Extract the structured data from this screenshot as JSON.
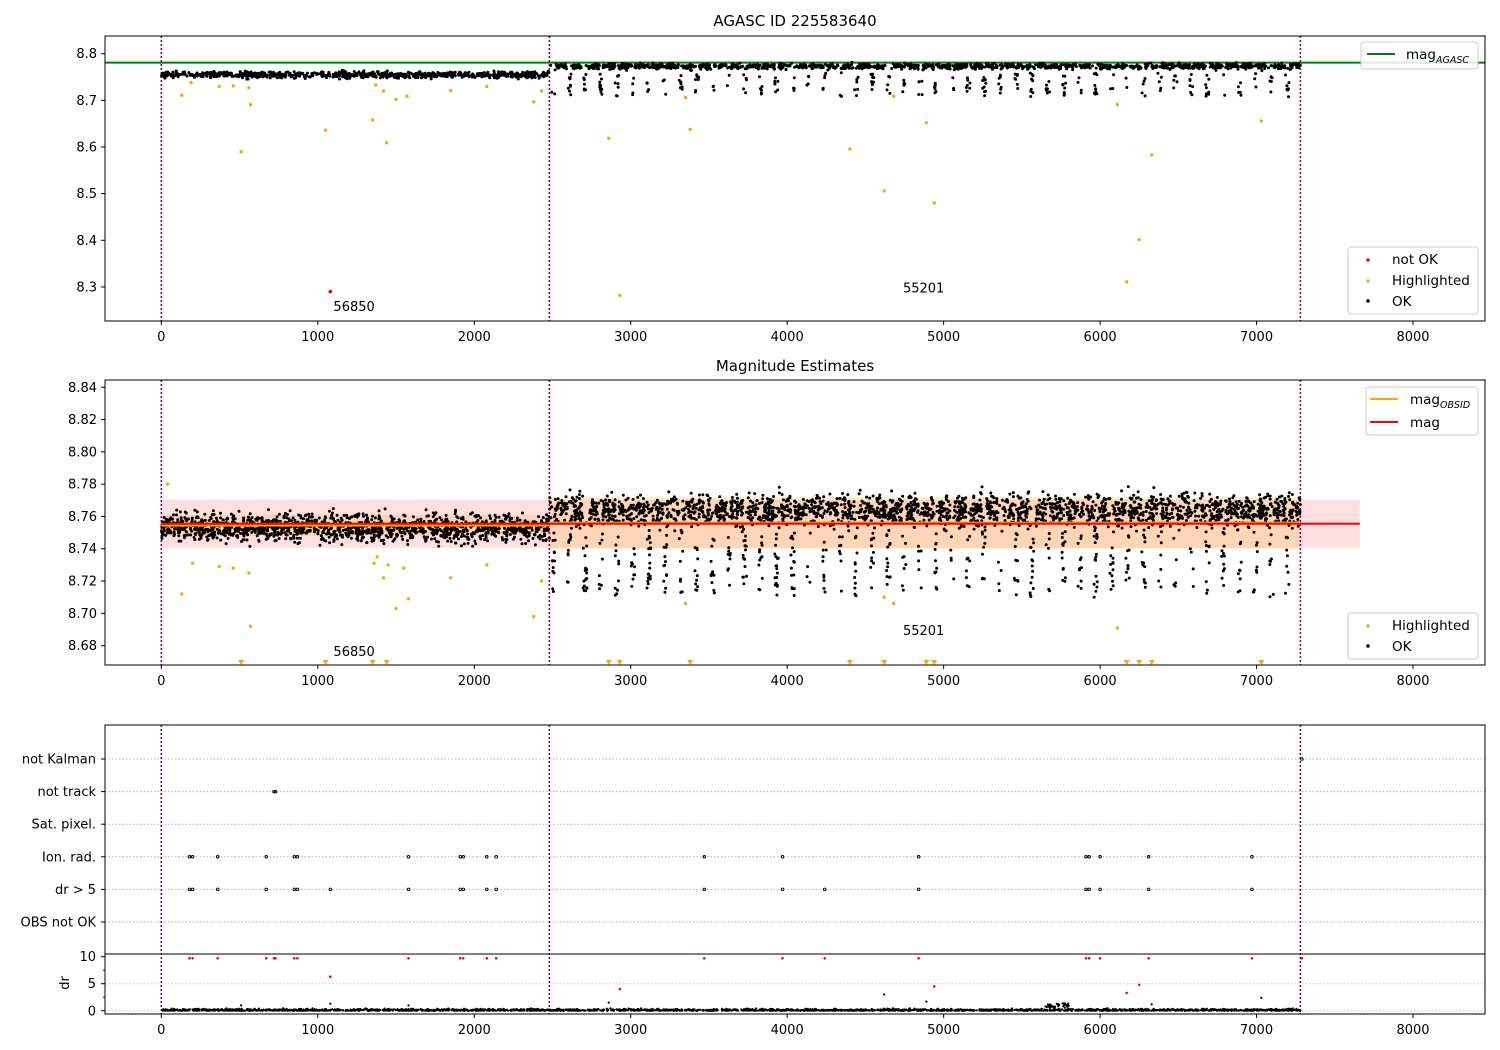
{
  "chart_data": [
    {
      "type": "scatter",
      "title": "AGASC ID 225583640",
      "xlim": [
        -360,
        8460
      ],
      "ylim": [
        8.227,
        8.838
      ],
      "xticks": [
        0,
        1000,
        2000,
        3000,
        4000,
        5000,
        6000,
        7000,
        8000
      ],
      "yticks": [
        8.3,
        8.4,
        8.5,
        8.6,
        8.7,
        8.8
      ],
      "ytick_labels": [
        "8.3",
        "8.4",
        "8.5",
        "8.6",
        "8.7",
        "8.8"
      ],
      "obs_boundaries": [
        0,
        2480,
        7280
      ],
      "hline": {
        "name": "mag",
        "sub": "AGASC",
        "value": 8.781,
        "color": "#008000"
      },
      "legend_line_position": "upper right",
      "legend_points_position": "lower right",
      "legend_points": [
        {
          "label": "not OK",
          "color": "#ff0000"
        },
        {
          "label": "Highlighted",
          "color": "#ffa500"
        },
        {
          "label": "OK",
          "color": "#000000"
        }
      ],
      "annotations": [
        {
          "text": "56850",
          "x": 1100,
          "y": 8.248
        },
        {
          "text": "55201",
          "x": 4740,
          "y": 8.288
        }
      ],
      "ok_segments": [
        {
          "x0": 0,
          "x1": 2480,
          "center": 8.755,
          "spread": 0.007,
          "dips": false
        },
        {
          "x0": 2480,
          "x1": 7280,
          "center": 8.773,
          "spread": 0.006,
          "dips": true,
          "dip_min": 8.71
        }
      ],
      "not_ok_points": [
        [
          1080,
          8.29
        ]
      ],
      "highlighted_points": [
        [
          130,
          8.711
        ],
        [
          190,
          8.738
        ],
        [
          370,
          8.73
        ],
        [
          460,
          8.731
        ],
        [
          510,
          8.59
        ],
        [
          560,
          8.727
        ],
        [
          570,
          8.691
        ],
        [
          1050,
          8.636
        ],
        [
          1350,
          8.658
        ],
        [
          1370,
          8.733
        ],
        [
          1420,
          8.72
        ],
        [
          1440,
          8.609
        ],
        [
          1500,
          8.702
        ],
        [
          1570,
          8.709
        ],
        [
          1850,
          8.721
        ],
        [
          2080,
          8.73
        ],
        [
          2380,
          8.697
        ],
        [
          2430,
          8.72
        ],
        [
          2860,
          8.619
        ],
        [
          2930,
          8.282
        ],
        [
          3350,
          8.706
        ],
        [
          3380,
          8.638
        ],
        [
          4400,
          8.596
        ],
        [
          4620,
          8.506
        ],
        [
          4680,
          8.709
        ],
        [
          4890,
          8.652
        ],
        [
          4940,
          8.48
        ],
        [
          6110,
          8.691
        ],
        [
          6170,
          8.311
        ],
        [
          6250,
          8.401
        ],
        [
          6330,
          8.583
        ],
        [
          7030,
          8.656
        ]
      ]
    },
    {
      "type": "scatter",
      "title": "Magnitude Estimates",
      "xlim": [
        -360,
        8460
      ],
      "ylim": [
        8.668,
        8.8445
      ],
      "xticks": [
        0,
        1000,
        2000,
        3000,
        4000,
        5000,
        6000,
        7000,
        8000
      ],
      "yticks": [
        8.68,
        8.7,
        8.72,
        8.74,
        8.76,
        8.78,
        8.8,
        8.82,
        8.84
      ],
      "ytick_labels": [
        "8.68",
        "8.70",
        "8.72",
        "8.74",
        "8.76",
        "8.78",
        "8.80",
        "8.82",
        "8.84"
      ],
      "obs_boundaries": [
        0,
        2480,
        7280
      ],
      "mag": {
        "name": "mag",
        "value": 8.7555,
        "band": [
          8.7405,
          8.7705
        ],
        "x_range": [
          0,
          7660
        ],
        "color": "#ff0000"
      },
      "mag_obsid": {
        "name": "mag",
        "sub": "OBSID",
        "color": "#ffa500",
        "segments": [
          {
            "x0": 0,
            "x1": 2480,
            "value": 8.7545,
            "band": [
              8.748,
              8.761
            ]
          },
          {
            "x0": 2480,
            "x1": 7280,
            "value": 8.756,
            "band": [
              8.74,
              8.772
            ]
          }
        ]
      },
      "legend_line_position": "upper right",
      "legend_points_position": "lower right",
      "legend_points": [
        {
          "label": "Highlighted",
          "color": "#ffa500"
        },
        {
          "label": "OK",
          "color": "#000000"
        }
      ],
      "annotations": [
        {
          "text": "56850",
          "x": 1100,
          "y": 8.6735
        },
        {
          "text": "55201",
          "x": 4740,
          "y": 8.6865
        }
      ],
      "ok_segments": [
        {
          "x0": 0,
          "x1": 2480,
          "center": 8.753,
          "spread": 0.0085,
          "dips": false
        },
        {
          "x0": 2480,
          "x1": 7280,
          "center": 8.764,
          "spread": 0.0095,
          "dips": true,
          "dip_min": 8.712
        }
      ],
      "highlighted_points": [
        [
          40,
          8.78
        ],
        [
          130,
          8.712
        ],
        [
          200,
          8.731
        ],
        [
          370,
          8.729
        ],
        [
          460,
          8.728
        ],
        [
          560,
          8.725
        ],
        [
          570,
          8.692
        ],
        [
          1360,
          8.731
        ],
        [
          1380,
          8.735
        ],
        [
          1420,
          8.722
        ],
        [
          1450,
          8.73
        ],
        [
          1500,
          8.703
        ],
        [
          1550,
          8.728
        ],
        [
          1580,
          8.709
        ],
        [
          1850,
          8.722
        ],
        [
          2080,
          8.73
        ],
        [
          2380,
          8.698
        ],
        [
          2430,
          8.72
        ],
        [
          3350,
          8.706
        ],
        [
          4620,
          8.71
        ],
        [
          4680,
          8.706
        ],
        [
          6110,
          8.691
        ]
      ],
      "below_axis_markers": [
        510,
        1050,
        1350,
        1440,
        2860,
        2930,
        3380,
        4400,
        4620,
        4890,
        4940,
        6170,
        6250,
        6330,
        7030
      ]
    },
    {
      "type": "scatter",
      "title": "",
      "xlim": [
        -360,
        8460
      ],
      "xticks": [
        0,
        1000,
        2000,
        3000,
        4000,
        5000,
        6000,
        7000,
        8000
      ],
      "obs_boundaries": [
        0,
        2480,
        7280
      ],
      "flag_rows": [
        "not Kalman",
        "not track",
        "Sat. pixel.",
        "Ion. rad.",
        "dr > 5",
        "OBS not OK"
      ],
      "flags": {
        "not Kalman": [
          7290
        ],
        "not track": [
          720,
          730
        ],
        "Sat. pixel.": [],
        "Ion. rad.": [
          180,
          200,
          360,
          670,
          850,
          870,
          1580,
          1910,
          1930,
          2080,
          2140,
          3470,
          3970,
          4840,
          5910,
          5930,
          6000,
          6310,
          6970
        ],
        "dr > 5": [
          180,
          200,
          360,
          670,
          850,
          870,
          1080,
          1580,
          1910,
          1930,
          2080,
          2140,
          3470,
          3970,
          4240,
          4840,
          5910,
          5930,
          6000,
          6310,
          6970
        ],
        "OBS not OK": []
      },
      "dr": {
        "ylabel": "dr",
        "ylim": [
          -0.6,
          10.5
        ],
        "yticks": [
          0,
          5,
          10
        ],
        "ytick_labels": [
          "0",
          "5",
          "10"
        ],
        "baseline_max": 0.7,
        "red_points": [
          [
            180,
            9.7
          ],
          [
            200,
            9.7
          ],
          [
            360,
            9.7
          ],
          [
            670,
            9.7
          ],
          [
            720,
            9.7
          ],
          [
            730,
            9.7
          ],
          [
            850,
            9.7
          ],
          [
            870,
            9.7
          ],
          [
            1080,
            6.3
          ],
          [
            1580,
            9.7
          ],
          [
            1910,
            9.7
          ],
          [
            1930,
            9.7
          ],
          [
            2080,
            9.7
          ],
          [
            2140,
            9.7
          ],
          [
            2930,
            4.0
          ],
          [
            3470,
            9.7
          ],
          [
            3970,
            9.7
          ],
          [
            4240,
            9.7
          ],
          [
            4840,
            9.7
          ],
          [
            4940,
            4.5
          ],
          [
            5910,
            9.7
          ],
          [
            5930,
            9.7
          ],
          [
            6000,
            9.7
          ],
          [
            6170,
            3.3
          ],
          [
            6250,
            4.8
          ],
          [
            6310,
            9.7
          ],
          [
            6970,
            9.7
          ],
          [
            7290,
            9.7
          ]
        ],
        "black_points": [
          [
            510,
            1.0
          ],
          [
            1080,
            1.3
          ],
          [
            1580,
            1.0
          ],
          [
            2860,
            1.5
          ],
          [
            4620,
            3.0
          ],
          [
            4890,
            1.7
          ],
          [
            6330,
            1.2
          ],
          [
            7030,
            2.4
          ]
        ]
      }
    }
  ]
}
